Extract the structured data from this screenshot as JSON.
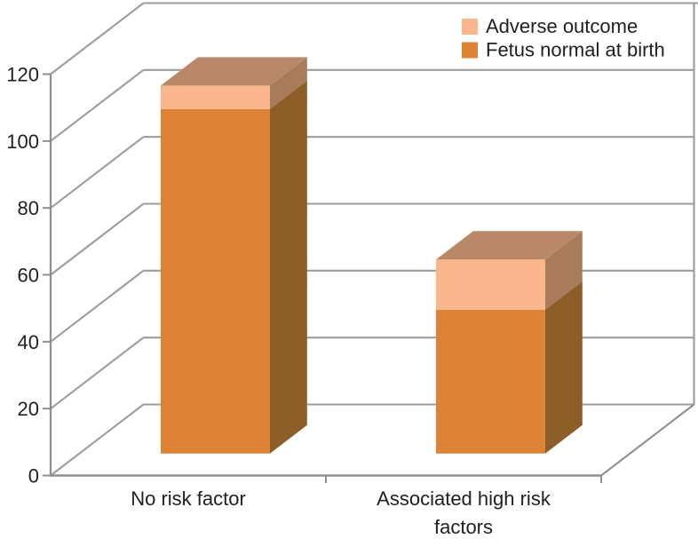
{
  "chart_data": {
    "type": "bar",
    "subtype": "3d-stacked-column",
    "title": "",
    "categories": [
      "No risk factor",
      "Associated high risk factors"
    ],
    "category_label_lines": [
      [
        "No risk factor"
      ],
      [
        "Associated high risk",
        "factors"
      ]
    ],
    "series": [
      {
        "name": "Fetus normal at birth",
        "values": [
          103,
          43
        ],
        "front_color": "#DC8336",
        "side_color": "#8D5E28",
        "top_color": "#9C6A2E"
      },
      {
        "name": "Adverse outcome",
        "values": [
          7,
          15
        ],
        "front_color": "#FAB78E",
        "side_color": "#A87B5A",
        "top_color": "#B98868"
      }
    ],
    "stack_order_bottom_to_top": [
      "Fetus normal at birth",
      "Adverse outcome"
    ],
    "legend": {
      "position": "top-right",
      "entries": [
        {
          "label": "Adverse outcome",
          "swatch_color": "#FAB78E"
        },
        {
          "label": "Fetus normal at birth",
          "swatch_color": "#DC8336"
        }
      ]
    },
    "y_axis": {
      "min": 0,
      "max": 120,
      "step": 20,
      "tick_labels": [
        "0",
        "20",
        "40",
        "60",
        "80",
        "100",
        "120"
      ]
    },
    "grid": true,
    "colors": {
      "gridline": "#9C9C9C",
      "axis": "#8F8F8F",
      "text": "#1F1F1F",
      "background": "#FFFFFF"
    }
  }
}
